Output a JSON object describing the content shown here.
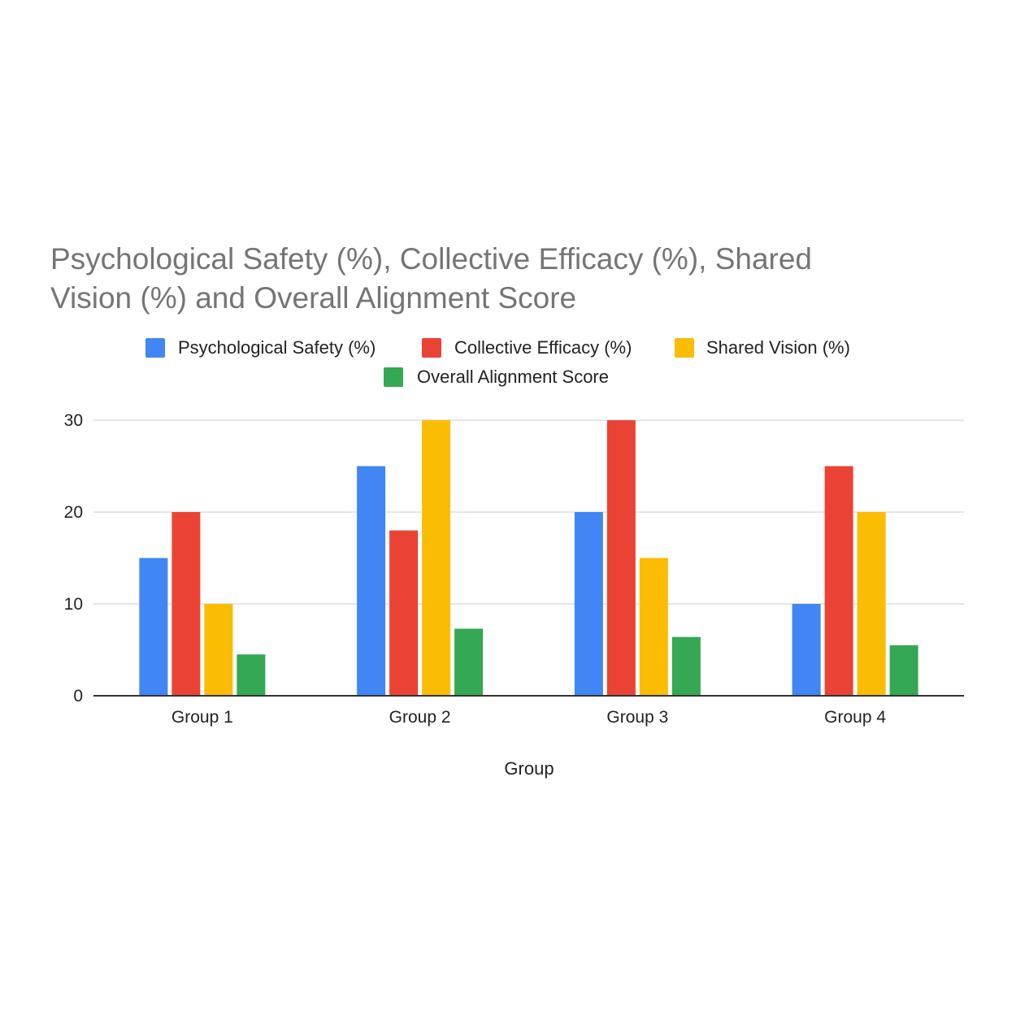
{
  "chart_data": {
    "type": "bar",
    "title": "Psychological Safety (%), Collective Efficacy (%), Shared Vision (%) and Overall Alignment Score",
    "title_lines": [
      "Psychological Safety (%), Collective Efficacy (%), Shared",
      "Vision (%) and Overall Alignment Score"
    ],
    "xlabel": "Group",
    "ylabel": "",
    "categories": [
      "Group 1",
      "Group 2",
      "Group 3",
      "Group 4"
    ],
    "ylim": [
      0,
      30
    ],
    "yticks": [
      0,
      10,
      20,
      30
    ],
    "grid": true,
    "legend_position": "top-center",
    "series": [
      {
        "name": "Psychological Safety (%)",
        "color": "#4285f4",
        "values": [
          15,
          25,
          20,
          10
        ]
      },
      {
        "name": "Collective Efficacy (%)",
        "color": "#ea4335",
        "values": [
          20,
          18,
          30,
          25
        ]
      },
      {
        "name": "Shared Vision (%)",
        "color": "#fbbc04",
        "values": [
          10,
          30,
          15,
          20
        ]
      },
      {
        "name": "Overall Alignment Score",
        "color": "#34a853",
        "values": [
          4.5,
          7.3,
          6.4,
          5.5
        ]
      }
    ]
  }
}
